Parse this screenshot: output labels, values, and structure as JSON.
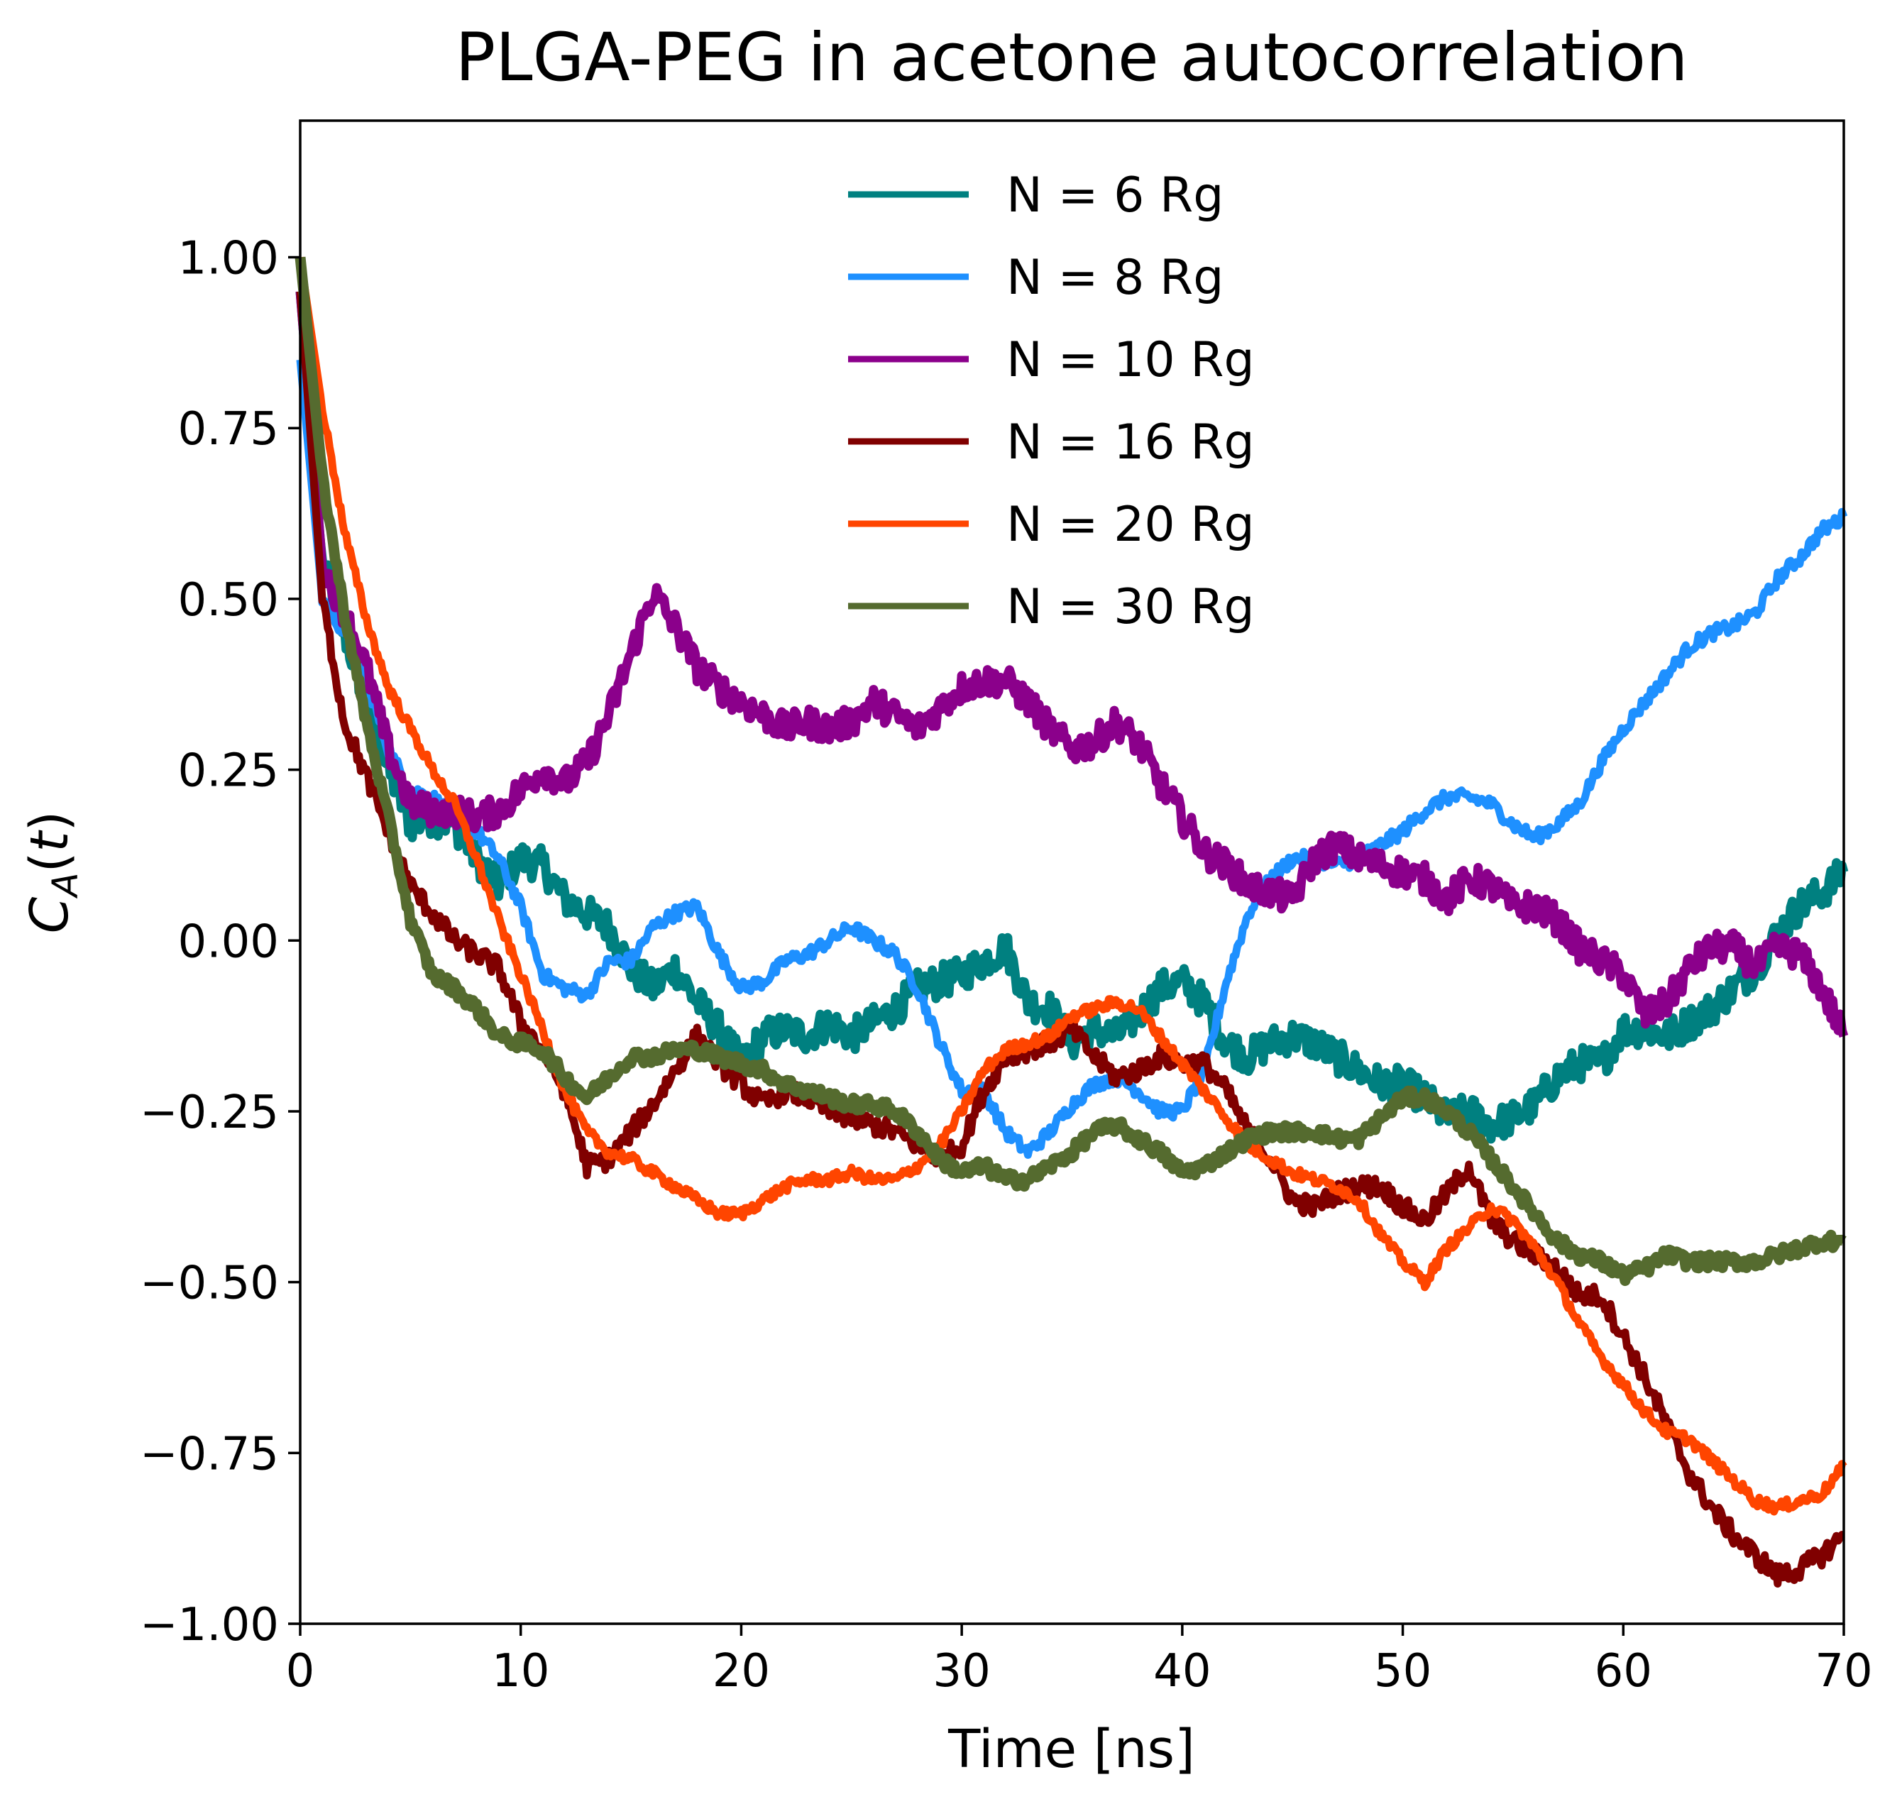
{
  "chart_data": {
    "type": "line",
    "title": "PLGA-PEG in acetone autocorrelation",
    "xlabel": "Time [ns]",
    "ylabel": "C_A(t)",
    "xlim": [
      0,
      70
    ],
    "ylim": [
      -1.0,
      1.2
    ],
    "xticks": [
      0,
      10,
      20,
      30,
      40,
      50,
      60,
      70
    ],
    "xtick_labels": [
      "0",
      "10",
      "20",
      "30",
      "40",
      "50",
      "60",
      "70"
    ],
    "yticks": [
      -1.0,
      -0.75,
      -0.5,
      -0.25,
      0.0,
      0.25,
      0.5,
      0.75,
      1.0
    ],
    "ytick_labels": [
      "−1.00",
      "−0.75",
      "−0.50",
      "−0.25",
      "0.00",
      "0.25",
      "0.50",
      "0.75",
      "1.00"
    ],
    "grid": false,
    "legend_position": "upper center",
    "series": [
      {
        "name": "N = 6 Rg",
        "color": "#008080",
        "noise": 0.025,
        "x": [
          0,
          1,
          2,
          3,
          4,
          5,
          6,
          7,
          8,
          9,
          10,
          11,
          12,
          13,
          14,
          15,
          16,
          17,
          18,
          19,
          20,
          21,
          22,
          23,
          24,
          25,
          26,
          27,
          28,
          29,
          30,
          31,
          32,
          33,
          34,
          35,
          36,
          37,
          38,
          39,
          40,
          41,
          42,
          43,
          44,
          45,
          46,
          47,
          48,
          49,
          50,
          51,
          52,
          53,
          54,
          55,
          56,
          57,
          58,
          59,
          60,
          61,
          62,
          63,
          64,
          65,
          66,
          67,
          68,
          69,
          70
        ],
        "y": [
          0.95,
          0.55,
          0.45,
          0.35,
          0.25,
          0.17,
          0.18,
          0.17,
          0.12,
          0.08,
          0.12,
          0.11,
          0.06,
          0.04,
          0.02,
          -0.04,
          -0.07,
          -0.04,
          -0.09,
          -0.13,
          -0.18,
          -0.14,
          -0.13,
          -0.14,
          -0.12,
          -0.14,
          -0.12,
          -0.1,
          -0.07,
          -0.06,
          -0.05,
          -0.03,
          -0.01,
          -0.09,
          -0.1,
          -0.15,
          -0.13,
          -0.14,
          -0.11,
          -0.07,
          -0.06,
          -0.09,
          -0.15,
          -0.17,
          -0.15,
          -0.14,
          -0.15,
          -0.17,
          -0.19,
          -0.21,
          -0.21,
          -0.23,
          -0.26,
          -0.25,
          -0.27,
          -0.26,
          -0.24,
          -0.2,
          -0.18,
          -0.18,
          -0.13,
          -0.13,
          -0.14,
          -0.12,
          -0.1,
          -0.07,
          -0.04,
          0.01,
          0.05,
          0.07,
          0.1
        ]
      },
      {
        "name": "N = 8 Rg",
        "color": "#1e90ff",
        "noise": 0.01,
        "x": [
          0,
          1,
          2,
          3,
          4,
          5,
          6,
          7,
          8,
          9,
          10,
          11,
          12,
          13,
          14,
          15,
          16,
          17,
          18,
          19,
          20,
          21,
          22,
          23,
          24,
          25,
          26,
          27,
          28,
          29,
          30,
          31,
          32,
          33,
          34,
          35,
          36,
          37,
          38,
          39,
          40,
          41,
          42,
          43,
          44,
          45,
          46,
          47,
          48,
          49,
          50,
          51,
          52,
          53,
          54,
          55,
          56,
          57,
          58,
          59,
          60,
          61,
          62,
          63,
          64,
          65,
          66,
          67,
          68,
          69,
          70
        ],
        "y": [
          0.85,
          0.5,
          0.45,
          0.38,
          0.28,
          0.22,
          0.21,
          0.18,
          0.16,
          0.12,
          0.05,
          -0.05,
          -0.07,
          -0.08,
          -0.03,
          -0.03,
          0.02,
          0.04,
          0.05,
          -0.02,
          -0.07,
          -0.06,
          -0.03,
          -0.02,
          0.0,
          0.02,
          0.0,
          -0.02,
          -0.07,
          -0.15,
          -0.22,
          -0.22,
          -0.28,
          -0.31,
          -0.28,
          -0.24,
          -0.21,
          -0.2,
          -0.22,
          -0.25,
          -0.25,
          -0.19,
          -0.06,
          0.04,
          0.09,
          0.12,
          0.12,
          0.11,
          0.12,
          0.14,
          0.16,
          0.19,
          0.21,
          0.21,
          0.2,
          0.17,
          0.15,
          0.17,
          0.2,
          0.26,
          0.31,
          0.35,
          0.39,
          0.43,
          0.45,
          0.46,
          0.48,
          0.53,
          0.56,
          0.6,
          0.62
        ]
      },
      {
        "name": "N = 10 Rg",
        "color": "#8b008b",
        "noise": 0.022,
        "x": [
          0,
          1,
          2,
          3,
          4,
          5,
          6,
          7,
          8,
          9,
          10,
          11,
          12,
          13,
          14,
          15,
          16,
          17,
          18,
          19,
          20,
          21,
          22,
          23,
          24,
          25,
          26,
          27,
          28,
          29,
          30,
          31,
          32,
          33,
          34,
          35,
          36,
          37,
          38,
          39,
          40,
          41,
          42,
          43,
          44,
          45,
          46,
          47,
          48,
          49,
          50,
          51,
          52,
          53,
          54,
          55,
          56,
          57,
          58,
          59,
          60,
          61,
          62,
          63,
          64,
          65,
          66,
          67,
          68,
          69,
          70
        ],
        "y": [
          0.95,
          0.55,
          0.48,
          0.4,
          0.28,
          0.2,
          0.19,
          0.19,
          0.18,
          0.19,
          0.22,
          0.25,
          0.23,
          0.26,
          0.33,
          0.42,
          0.51,
          0.46,
          0.4,
          0.37,
          0.35,
          0.33,
          0.31,
          0.32,
          0.31,
          0.32,
          0.35,
          0.33,
          0.31,
          0.34,
          0.37,
          0.38,
          0.38,
          0.35,
          0.31,
          0.28,
          0.29,
          0.32,
          0.29,
          0.23,
          0.18,
          0.13,
          0.11,
          0.08,
          0.07,
          0.06,
          0.12,
          0.14,
          0.12,
          0.11,
          0.1,
          0.09,
          0.06,
          0.09,
          0.08,
          0.05,
          0.05,
          0.03,
          -0.01,
          -0.03,
          -0.05,
          -0.11,
          -0.09,
          -0.04,
          -0.01,
          -0.01,
          -0.04,
          -0.01,
          -0.02,
          -0.07,
          -0.14
        ]
      },
      {
        "name": "N = 16 Rg",
        "color": "#800000",
        "noise": 0.015,
        "x": [
          0,
          1,
          2,
          3,
          4,
          5,
          6,
          7,
          8,
          9,
          10,
          11,
          12,
          13,
          14,
          15,
          16,
          17,
          18,
          19,
          20,
          21,
          22,
          23,
          24,
          25,
          26,
          27,
          28,
          29,
          30,
          31,
          32,
          33,
          34,
          35,
          36,
          37,
          38,
          39,
          40,
          41,
          42,
          43,
          44,
          45,
          46,
          47,
          48,
          49,
          50,
          51,
          52,
          53,
          54,
          55,
          56,
          57,
          58,
          59,
          60,
          61,
          62,
          63,
          64,
          65,
          66,
          67,
          68,
          69,
          70
        ],
        "y": [
          0.95,
          0.5,
          0.32,
          0.24,
          0.16,
          0.08,
          0.04,
          0.0,
          -0.02,
          -0.04,
          -0.12,
          -0.16,
          -0.22,
          -0.33,
          -0.32,
          -0.28,
          -0.24,
          -0.19,
          -0.14,
          -0.18,
          -0.21,
          -0.24,
          -0.22,
          -0.23,
          -0.25,
          -0.26,
          -0.27,
          -0.28,
          -0.3,
          -0.32,
          -0.3,
          -0.22,
          -0.17,
          -0.16,
          -0.15,
          -0.13,
          -0.17,
          -0.2,
          -0.19,
          -0.17,
          -0.18,
          -0.18,
          -0.22,
          -0.28,
          -0.32,
          -0.38,
          -0.39,
          -0.37,
          -0.36,
          -0.36,
          -0.39,
          -0.41,
          -0.37,
          -0.33,
          -0.41,
          -0.44,
          -0.46,
          -0.48,
          -0.52,
          -0.52,
          -0.58,
          -0.64,
          -0.71,
          -0.78,
          -0.83,
          -0.87,
          -0.9,
          -0.93,
          -0.92,
          -0.9,
          -0.87
        ]
      },
      {
        "name": "N = 20 Rg",
        "color": "#ff4500",
        "noise": 0.008,
        "x": [
          0,
          1,
          2,
          3,
          4,
          5,
          6,
          7,
          8,
          9,
          10,
          11,
          12,
          13,
          14,
          15,
          16,
          17,
          18,
          19,
          20,
          21,
          22,
          23,
          24,
          25,
          26,
          27,
          28,
          29,
          30,
          31,
          32,
          33,
          34,
          35,
          36,
          37,
          38,
          39,
          40,
          41,
          42,
          43,
          44,
          45,
          46,
          47,
          48,
          49,
          50,
          51,
          52,
          53,
          54,
          55,
          56,
          57,
          58,
          59,
          60,
          61,
          62,
          63,
          64,
          65,
          66,
          67,
          68,
          69,
          70
        ],
        "y": [
          1.0,
          0.78,
          0.6,
          0.47,
          0.37,
          0.31,
          0.25,
          0.2,
          0.12,
          0.03,
          -0.05,
          -0.13,
          -0.22,
          -0.28,
          -0.31,
          -0.32,
          -0.34,
          -0.36,
          -0.38,
          -0.4,
          -0.4,
          -0.38,
          -0.36,
          -0.35,
          -0.35,
          -0.34,
          -0.35,
          -0.35,
          -0.33,
          -0.3,
          -0.25,
          -0.19,
          -0.16,
          -0.15,
          -0.14,
          -0.11,
          -0.1,
          -0.09,
          -0.1,
          -0.14,
          -0.18,
          -0.22,
          -0.26,
          -0.3,
          -0.32,
          -0.34,
          -0.35,
          -0.36,
          -0.38,
          -0.43,
          -0.47,
          -0.5,
          -0.45,
          -0.42,
          -0.39,
          -0.41,
          -0.45,
          -0.5,
          -0.56,
          -0.61,
          -0.65,
          -0.69,
          -0.72,
          -0.73,
          -0.76,
          -0.79,
          -0.82,
          -0.83,
          -0.82,
          -0.81,
          -0.77
        ]
      },
      {
        "name": "N = 30 Rg",
        "color": "#556b2f",
        "noise": 0.01,
        "x": [
          0,
          1,
          2,
          3,
          4,
          5,
          6,
          7,
          8,
          9,
          10,
          11,
          12,
          13,
          14,
          15,
          16,
          17,
          18,
          19,
          20,
          21,
          22,
          23,
          24,
          25,
          26,
          27,
          28,
          29,
          30,
          31,
          32,
          33,
          34,
          35,
          36,
          37,
          38,
          39,
          40,
          41,
          42,
          43,
          44,
          45,
          46,
          47,
          48,
          49,
          50,
          51,
          52,
          53,
          54,
          55,
          56,
          57,
          58,
          59,
          60,
          61,
          62,
          63,
          64,
          65,
          66,
          67,
          68,
          69,
          70
        ],
        "y": [
          1.0,
          0.68,
          0.48,
          0.32,
          0.18,
          0.03,
          -0.05,
          -0.07,
          -0.1,
          -0.14,
          -0.15,
          -0.16,
          -0.2,
          -0.23,
          -0.2,
          -0.17,
          -0.17,
          -0.16,
          -0.16,
          -0.17,
          -0.18,
          -0.19,
          -0.21,
          -0.22,
          -0.23,
          -0.24,
          -0.24,
          -0.25,
          -0.28,
          -0.32,
          -0.34,
          -0.33,
          -0.35,
          -0.35,
          -0.33,
          -0.31,
          -0.28,
          -0.27,
          -0.29,
          -0.31,
          -0.34,
          -0.33,
          -0.31,
          -0.29,
          -0.28,
          -0.28,
          -0.28,
          -0.29,
          -0.29,
          -0.26,
          -0.23,
          -0.23,
          -0.25,
          -0.28,
          -0.32,
          -0.36,
          -0.4,
          -0.44,
          -0.46,
          -0.47,
          -0.49,
          -0.48,
          -0.46,
          -0.47,
          -0.47,
          -0.47,
          -0.47,
          -0.46,
          -0.45,
          -0.44,
          -0.44
        ]
      }
    ]
  }
}
